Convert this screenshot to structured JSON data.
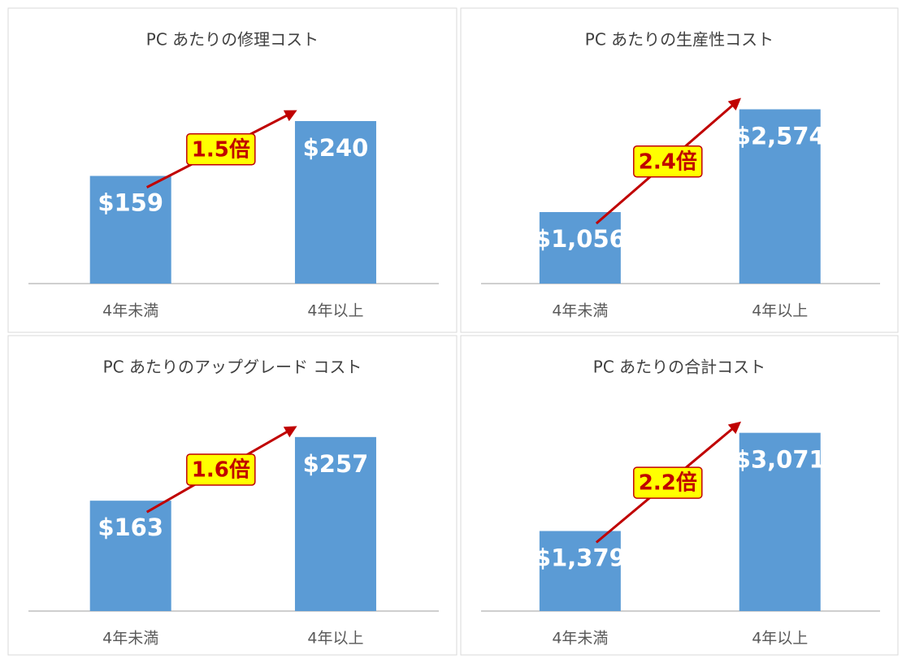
{
  "chart_data": [
    {
      "type": "bar",
      "title": "PC あたりの修理コスト",
      "categories": [
        "4年未満",
        "4年以上"
      ],
      "values": [
        159,
        240
      ],
      "value_labels": [
        "$159",
        "$240"
      ],
      "color": "#5b9bd5",
      "ylim": [
        0,
        300
      ],
      "annotation": "1.5倍"
    },
    {
      "type": "bar",
      "title": "PC あたりの生産性コスト",
      "categories": [
        "4年未満",
        "4年以上"
      ],
      "values": [
        1056,
        2574
      ],
      "value_labels": [
        "$1,056",
        "$2,574"
      ],
      "color": "#5b9bd5",
      "ylim": [
        0,
        3000
      ],
      "annotation": "2.4倍"
    },
    {
      "type": "bar",
      "title": "PC あたりのアップグレード コスト",
      "categories": [
        "4年未満",
        "4年以上"
      ],
      "values": [
        163,
        257
      ],
      "value_labels": [
        "$163",
        "$257"
      ],
      "color": "#5b9bd5",
      "ylim": [
        0,
        300
      ],
      "annotation": "1.6倍"
    },
    {
      "type": "bar",
      "title": "PC あたりの合計コスト",
      "categories": [
        "4年未満",
        "4年以上"
      ],
      "values": [
        1379,
        3071
      ],
      "value_labels": [
        "$1,379",
        "$3,071"
      ],
      "color": "#5b9bd5",
      "ylim": [
        0,
        3500
      ],
      "annotation": "2.2倍"
    }
  ]
}
